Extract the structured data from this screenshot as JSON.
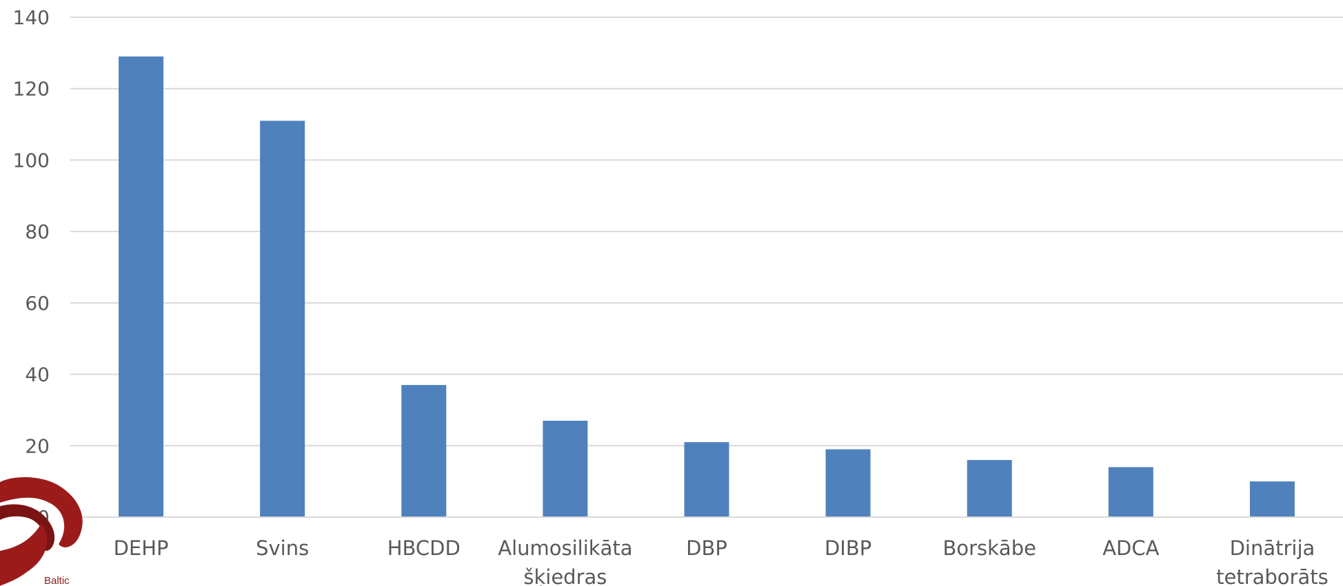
{
  "chart_data": {
    "type": "bar",
    "categories": [
      [
        "DEHP"
      ],
      [
        "Svins"
      ],
      [
        "HBCDD"
      ],
      [
        "Alumosilikāta",
        "šķiedras"
      ],
      [
        "DBP"
      ],
      [
        "DIBP"
      ],
      [
        "Borskābe"
      ],
      [
        "ADCA"
      ],
      [
        "Dinātrija",
        "tetraborāts"
      ]
    ],
    "values": [
      129,
      111,
      37,
      27,
      21,
      19,
      16,
      14,
      10
    ],
    "yticks": [
      "0",
      "20",
      "40",
      "60",
      "80",
      "100",
      "120",
      "140"
    ],
    "ylim": [
      0,
      140
    ],
    "grid": true,
    "title": "",
    "xlabel": "",
    "ylabel": "",
    "colors": {
      "bar": "#4F81BD",
      "grid": "#D9D9D9",
      "text": "#595959",
      "logo": "#9B1B1B"
    }
  },
  "logo": {
    "text": "Baltic"
  }
}
